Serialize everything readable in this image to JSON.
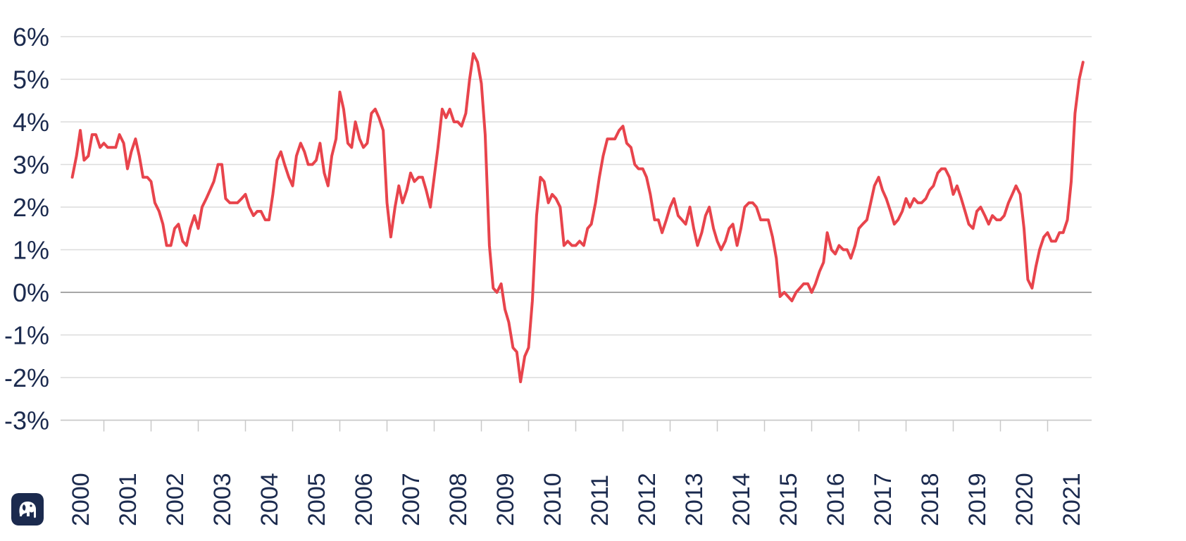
{
  "chart_data": {
    "type": "line",
    "title": "",
    "xlabel": "",
    "ylabel": "",
    "ylim": [
      -3,
      6
    ],
    "xlim": [
      1999.8,
      2021.5
    ],
    "grid": true,
    "y_tick_values": [
      6,
      5,
      4,
      3,
      2,
      1,
      0,
      -1,
      -2,
      -3
    ],
    "y_tick_labels": [
      "6%",
      "5%",
      "4%",
      "3%",
      "2%",
      "1%",
      "0%",
      "-1%",
      "-2%",
      "-3%"
    ],
    "x_tick_labels": [
      "2000",
      "2001",
      "2002",
      "2003",
      "2004",
      "2005",
      "2006",
      "2007",
      "2008",
      "2009",
      "2010",
      "2011",
      "2012",
      "2013",
      "2014",
      "2015",
      "2016",
      "2017",
      "2018",
      "2019",
      "2020",
      "2021"
    ],
    "series": [
      {
        "color": "#e8444c",
        "points": [
          [
            1999.83,
            2.7
          ],
          [
            1999.92,
            3.2
          ],
          [
            2000.0,
            3.8
          ],
          [
            2000.08,
            3.1
          ],
          [
            2000.17,
            3.2
          ],
          [
            2000.25,
            3.7
          ],
          [
            2000.33,
            3.7
          ],
          [
            2000.42,
            3.4
          ],
          [
            2000.5,
            3.5
          ],
          [
            2000.58,
            3.4
          ],
          [
            2000.67,
            3.4
          ],
          [
            2000.75,
            3.4
          ],
          [
            2000.83,
            3.7
          ],
          [
            2000.92,
            3.5
          ],
          [
            2001.0,
            2.9
          ],
          [
            2001.08,
            3.3
          ],
          [
            2001.17,
            3.6
          ],
          [
            2001.25,
            3.2
          ],
          [
            2001.33,
            2.7
          ],
          [
            2001.42,
            2.7
          ],
          [
            2001.5,
            2.6
          ],
          [
            2001.58,
            2.1
          ],
          [
            2001.67,
            1.9
          ],
          [
            2001.75,
            1.6
          ],
          [
            2001.83,
            1.1
          ],
          [
            2001.92,
            1.1
          ],
          [
            2002.0,
            1.5
          ],
          [
            2002.08,
            1.6
          ],
          [
            2002.17,
            1.2
          ],
          [
            2002.25,
            1.1
          ],
          [
            2002.33,
            1.5
          ],
          [
            2002.42,
            1.8
          ],
          [
            2002.5,
            1.5
          ],
          [
            2002.58,
            2.0
          ],
          [
            2002.67,
            2.2
          ],
          [
            2002.75,
            2.4
          ],
          [
            2002.83,
            2.6
          ],
          [
            2002.92,
            3.0
          ],
          [
            2003.0,
            3.0
          ],
          [
            2003.08,
            2.2
          ],
          [
            2003.17,
            2.1
          ],
          [
            2003.25,
            2.1
          ],
          [
            2003.33,
            2.1
          ],
          [
            2003.42,
            2.2
          ],
          [
            2003.5,
            2.3
          ],
          [
            2003.58,
            2.0
          ],
          [
            2003.67,
            1.8
          ],
          [
            2003.75,
            1.9
          ],
          [
            2003.83,
            1.9
          ],
          [
            2003.92,
            1.7
          ],
          [
            2004.0,
            1.7
          ],
          [
            2004.08,
            2.3
          ],
          [
            2004.17,
            3.1
          ],
          [
            2004.25,
            3.3
          ],
          [
            2004.33,
            3.0
          ],
          [
            2004.42,
            2.7
          ],
          [
            2004.5,
            2.5
          ],
          [
            2004.58,
            3.2
          ],
          [
            2004.67,
            3.5
          ],
          [
            2004.75,
            3.3
          ],
          [
            2004.83,
            3.0
          ],
          [
            2004.92,
            3.0
          ],
          [
            2005.0,
            3.1
          ],
          [
            2005.08,
            3.5
          ],
          [
            2005.17,
            2.8
          ],
          [
            2005.25,
            2.5
          ],
          [
            2005.33,
            3.2
          ],
          [
            2005.42,
            3.6
          ],
          [
            2005.5,
            4.7
          ],
          [
            2005.58,
            4.3
          ],
          [
            2005.67,
            3.5
          ],
          [
            2005.75,
            3.4
          ],
          [
            2005.83,
            4.0
          ],
          [
            2005.92,
            3.6
          ],
          [
            2006.0,
            3.4
          ],
          [
            2006.08,
            3.5
          ],
          [
            2006.17,
            4.2
          ],
          [
            2006.25,
            4.3
          ],
          [
            2006.33,
            4.1
          ],
          [
            2006.42,
            3.8
          ],
          [
            2006.5,
            2.1
          ],
          [
            2006.58,
            1.3
          ],
          [
            2006.67,
            2.0
          ],
          [
            2006.75,
            2.5
          ],
          [
            2006.83,
            2.1
          ],
          [
            2006.92,
            2.4
          ],
          [
            2007.0,
            2.8
          ],
          [
            2007.08,
            2.6
          ],
          [
            2007.17,
            2.7
          ],
          [
            2007.25,
            2.7
          ],
          [
            2007.33,
            2.4
          ],
          [
            2007.42,
            2.0
          ],
          [
            2007.5,
            2.7
          ],
          [
            2007.58,
            3.4
          ],
          [
            2007.67,
            4.3
          ],
          [
            2007.75,
            4.1
          ],
          [
            2007.83,
            4.3
          ],
          [
            2007.92,
            4.0
          ],
          [
            2008.0,
            4.0
          ],
          [
            2008.08,
            3.9
          ],
          [
            2008.17,
            4.2
          ],
          [
            2008.25,
            5.0
          ],
          [
            2008.33,
            5.6
          ],
          [
            2008.42,
            5.4
          ],
          [
            2008.5,
            4.9
          ],
          [
            2008.58,
            3.7
          ],
          [
            2008.67,
            1.1
          ],
          [
            2008.75,
            0.1
          ],
          [
            2008.83,
            0.0
          ],
          [
            2008.92,
            0.2
          ],
          [
            2009.0,
            -0.4
          ],
          [
            2009.08,
            -0.7
          ],
          [
            2009.17,
            -1.3
          ],
          [
            2009.25,
            -1.4
          ],
          [
            2009.33,
            -2.1
          ],
          [
            2009.42,
            -1.5
          ],
          [
            2009.5,
            -1.3
          ],
          [
            2009.58,
            -0.2
          ],
          [
            2009.67,
            1.8
          ],
          [
            2009.75,
            2.7
          ],
          [
            2009.83,
            2.6
          ],
          [
            2009.92,
            2.1
          ],
          [
            2010.0,
            2.3
          ],
          [
            2010.08,
            2.2
          ],
          [
            2010.17,
            2.0
          ],
          [
            2010.25,
            1.1
          ],
          [
            2010.33,
            1.2
          ],
          [
            2010.42,
            1.1
          ],
          [
            2010.5,
            1.1
          ],
          [
            2010.58,
            1.2
          ],
          [
            2010.67,
            1.1
          ],
          [
            2010.75,
            1.5
          ],
          [
            2010.83,
            1.6
          ],
          [
            2010.92,
            2.1
          ],
          [
            2011.0,
            2.7
          ],
          [
            2011.08,
            3.2
          ],
          [
            2011.17,
            3.6
          ],
          [
            2011.25,
            3.6
          ],
          [
            2011.33,
            3.6
          ],
          [
            2011.42,
            3.8
          ],
          [
            2011.5,
            3.9
          ],
          [
            2011.58,
            3.5
          ],
          [
            2011.67,
            3.4
          ],
          [
            2011.75,
            3.0
          ],
          [
            2011.83,
            2.9
          ],
          [
            2011.92,
            2.9
          ],
          [
            2012.0,
            2.7
          ],
          [
            2012.08,
            2.3
          ],
          [
            2012.17,
            1.7
          ],
          [
            2012.25,
            1.7
          ],
          [
            2012.33,
            1.4
          ],
          [
            2012.42,
            1.7
          ],
          [
            2012.5,
            2.0
          ],
          [
            2012.58,
            2.2
          ],
          [
            2012.67,
            1.8
          ],
          [
            2012.75,
            1.7
          ],
          [
            2012.83,
            1.6
          ],
          [
            2012.92,
            2.0
          ],
          [
            2013.0,
            1.5
          ],
          [
            2013.08,
            1.1
          ],
          [
            2013.17,
            1.4
          ],
          [
            2013.25,
            1.8
          ],
          [
            2013.33,
            2.0
          ],
          [
            2013.42,
            1.5
          ],
          [
            2013.5,
            1.2
          ],
          [
            2013.58,
            1.0
          ],
          [
            2013.67,
            1.2
          ],
          [
            2013.75,
            1.5
          ],
          [
            2013.83,
            1.6
          ],
          [
            2013.92,
            1.1
          ],
          [
            2014.0,
            1.5
          ],
          [
            2014.08,
            2.0
          ],
          [
            2014.17,
            2.1
          ],
          [
            2014.25,
            2.1
          ],
          [
            2014.33,
            2.0
          ],
          [
            2014.42,
            1.7
          ],
          [
            2014.5,
            1.7
          ],
          [
            2014.58,
            1.7
          ],
          [
            2014.67,
            1.3
          ],
          [
            2014.75,
            0.8
          ],
          [
            2014.83,
            -0.1
          ],
          [
            2014.92,
            0.0
          ],
          [
            2015.0,
            -0.1
          ],
          [
            2015.08,
            -0.2
          ],
          [
            2015.17,
            0.0
          ],
          [
            2015.25,
            0.1
          ],
          [
            2015.33,
            0.2
          ],
          [
            2015.42,
            0.2
          ],
          [
            2015.5,
            0.0
          ],
          [
            2015.58,
            0.2
          ],
          [
            2015.67,
            0.5
          ],
          [
            2015.75,
            0.7
          ],
          [
            2015.83,
            1.4
          ],
          [
            2015.92,
            1.0
          ],
          [
            2016.0,
            0.9
          ],
          [
            2016.08,
            1.1
          ],
          [
            2016.17,
            1.0
          ],
          [
            2016.25,
            1.0
          ],
          [
            2016.33,
            0.8
          ],
          [
            2016.42,
            1.1
          ],
          [
            2016.5,
            1.5
          ],
          [
            2016.58,
            1.6
          ],
          [
            2016.67,
            1.7
          ],
          [
            2016.75,
            2.1
          ],
          [
            2016.83,
            2.5
          ],
          [
            2016.92,
            2.7
          ],
          [
            2017.0,
            2.4
          ],
          [
            2017.08,
            2.2
          ],
          [
            2017.17,
            1.9
          ],
          [
            2017.25,
            1.6
          ],
          [
            2017.33,
            1.7
          ],
          [
            2017.42,
            1.9
          ],
          [
            2017.5,
            2.2
          ],
          [
            2017.58,
            2.0
          ],
          [
            2017.67,
            2.2
          ],
          [
            2017.75,
            2.1
          ],
          [
            2017.83,
            2.1
          ],
          [
            2017.92,
            2.2
          ],
          [
            2018.0,
            2.4
          ],
          [
            2018.08,
            2.5
          ],
          [
            2018.17,
            2.8
          ],
          [
            2018.25,
            2.9
          ],
          [
            2018.33,
            2.9
          ],
          [
            2018.42,
            2.7
          ],
          [
            2018.5,
            2.3
          ],
          [
            2018.58,
            2.5
          ],
          [
            2018.67,
            2.2
          ],
          [
            2018.75,
            1.9
          ],
          [
            2018.83,
            1.6
          ],
          [
            2018.92,
            1.5
          ],
          [
            2019.0,
            1.9
          ],
          [
            2019.08,
            2.0
          ],
          [
            2019.17,
            1.8
          ],
          [
            2019.25,
            1.6
          ],
          [
            2019.33,
            1.8
          ],
          [
            2019.42,
            1.7
          ],
          [
            2019.5,
            1.7
          ],
          [
            2019.58,
            1.8
          ],
          [
            2019.67,
            2.1
          ],
          [
            2019.75,
            2.3
          ],
          [
            2019.83,
            2.5
          ],
          [
            2019.92,
            2.3
          ],
          [
            2020.0,
            1.5
          ],
          [
            2020.08,
            0.3
          ],
          [
            2020.17,
            0.1
          ],
          [
            2020.25,
            0.6
          ],
          [
            2020.33,
            1.0
          ],
          [
            2020.42,
            1.3
          ],
          [
            2020.5,
            1.4
          ],
          [
            2020.58,
            1.2
          ],
          [
            2020.67,
            1.2
          ],
          [
            2020.75,
            1.4
          ],
          [
            2020.83,
            1.4
          ],
          [
            2020.92,
            1.7
          ],
          [
            2021.0,
            2.6
          ],
          [
            2021.08,
            4.2
          ],
          [
            2021.17,
            5.0
          ],
          [
            2021.25,
            5.4
          ]
        ]
      }
    ]
  },
  "colors": {
    "axis_text": "#1b2a4e",
    "grid": "#dcdcdc",
    "zero_line": "#8a8a8a",
    "line": "#e8444c",
    "logo_bg": "#1b2a4e"
  },
  "logo": {
    "icon": "elephant-logo-icon"
  }
}
